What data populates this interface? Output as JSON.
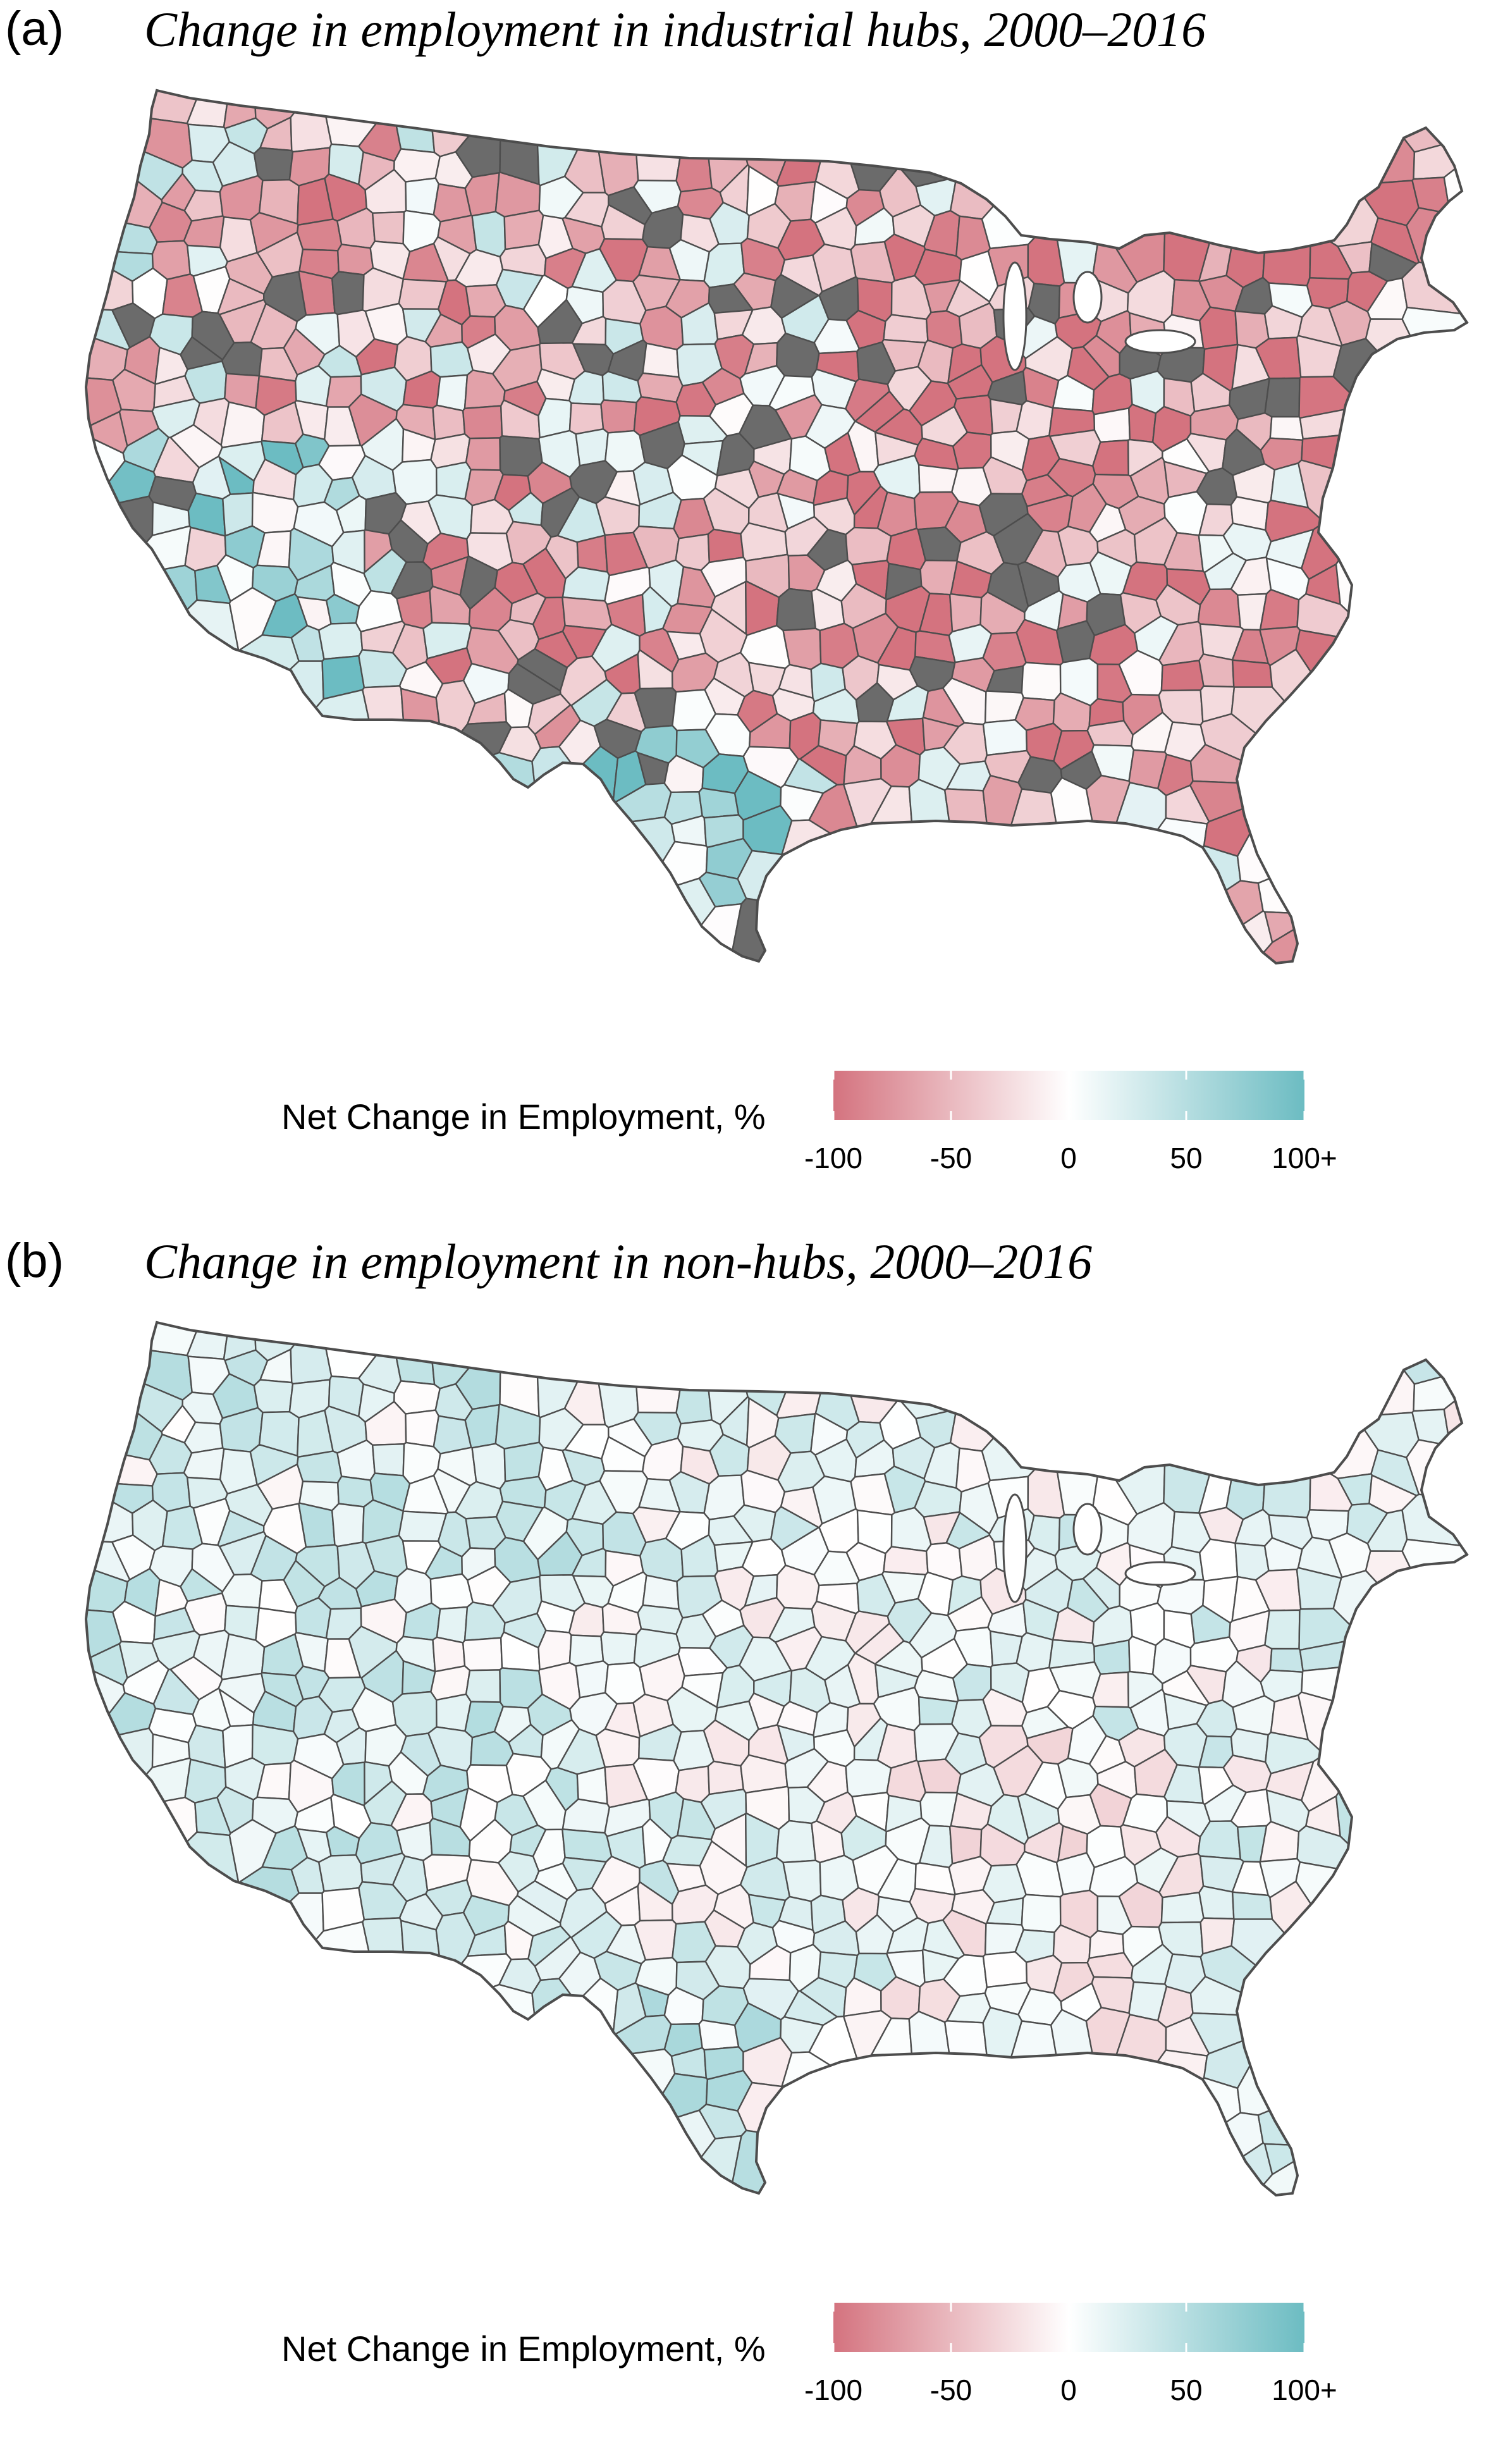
{
  "panels": [
    {
      "label": "(a)",
      "title": "Change in employment in industrial hubs, 2000–2016",
      "variant": "hubs",
      "legend": {
        "title": "Net Change in Employment, %",
        "ticks": [
          "-100",
          "-50",
          "0",
          "50",
          "100+"
        ]
      }
    },
    {
      "label": "(b)",
      "title": "Change in employment in non-hubs, 2000–2016",
      "variant": "nonhubs",
      "legend": {
        "title": "Net Change in Employment, %",
        "ticks": [
          "-100",
          "-50",
          "0",
          "50",
          "100+"
        ]
      }
    }
  ],
  "colors": {
    "negative": "#d4737f",
    "neutral": "#ffffff",
    "positive": "#6cbcc2",
    "no_data": "#6b6b6b",
    "border": "#4d4d4d"
  },
  "scale": {
    "min": -100,
    "max": 100
  }
}
